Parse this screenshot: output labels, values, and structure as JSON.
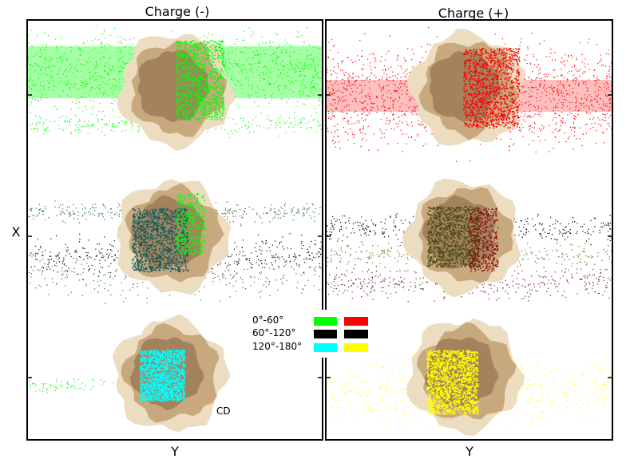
{
  "chart_data": [
    {
      "type": "scatter",
      "title": "Charge (-)",
      "xlabel": "Y",
      "ylabel": "X",
      "annotation": "CD",
      "series": [
        {
          "name": "0°-60°",
          "color": "#00ff00",
          "band": "top"
        },
        {
          "name": "60°-120°",
          "color": "#000000",
          "band": "middle"
        },
        {
          "name": "120°-180°",
          "color": "#00ffff",
          "band": "bottom"
        }
      ]
    },
    {
      "type": "scatter",
      "title": "Charge (+)",
      "xlabel": "Y",
      "ylabel": "",
      "series": [
        {
          "name": "0°-60°",
          "color": "#ff0000",
          "band": "top"
        },
        {
          "name": "60°-120°",
          "color": "#000000",
          "band": "middle"
        },
        {
          "name": "120°-180°",
          "color": "#ffff00",
          "band": "bottom"
        }
      ]
    }
  ],
  "legend": {
    "placement": "between panels",
    "entries": [
      {
        "label": "0°-60°",
        "neg_color": "#00ff00",
        "pos_color": "#ff0000"
      },
      {
        "label": "60°-120°",
        "neg_color": "#000000",
        "pos_color": "#000000"
      },
      {
        "label": "120°-180°",
        "neg_color": "#00ffff",
        "pos_color": "#ffff00"
      }
    ]
  },
  "colors": {
    "cd_light": "#ecdcc0",
    "cd_mid": "#c8a97e",
    "cd_dark": "#a3825e",
    "dark_green_points": "#2e6b3a",
    "dark_red_points": "#6b1f24"
  }
}
